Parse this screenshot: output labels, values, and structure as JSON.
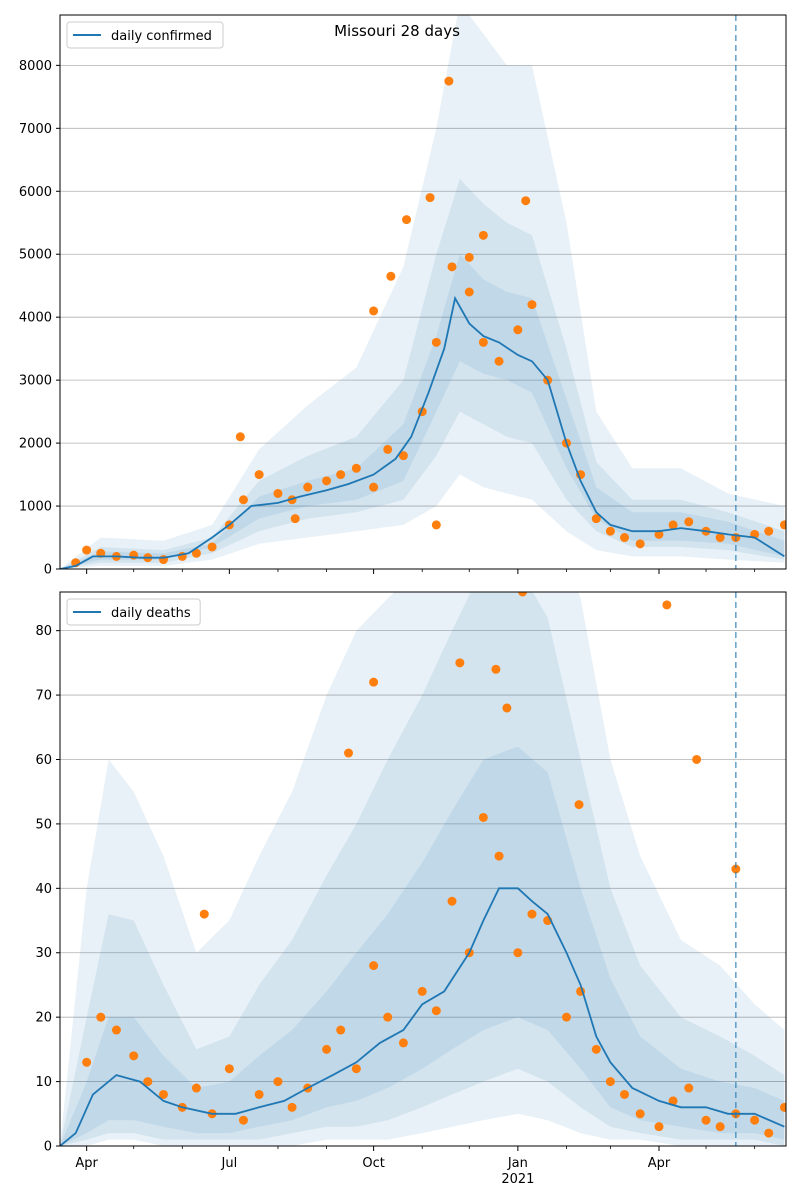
{
  "figure": {
    "title": "Missouri 28 days"
  },
  "chart_data": [
    {
      "type": "line",
      "name_in_legend": "daily confirmed",
      "series": [
        {
          "name": "daily confirmed",
          "style": "line",
          "x": [
            "2020-03-15",
            "2020-03-25",
            "2020-04-05",
            "2020-04-20",
            "2020-05-05",
            "2020-05-20",
            "2020-06-05",
            "2020-06-20",
            "2020-07-01",
            "2020-07-15",
            "2020-08-01",
            "2020-08-15",
            "2020-09-01",
            "2020-09-15",
            "2020-10-01",
            "2020-10-15",
            "2020-10-25",
            "2020-11-05",
            "2020-11-15",
            "2020-11-22",
            "2020-12-01",
            "2020-12-10",
            "2020-12-20",
            "2021-01-01",
            "2021-01-10",
            "2021-01-20",
            "2021-02-01",
            "2021-02-10",
            "2021-02-20",
            "2021-03-01",
            "2021-03-15",
            "2021-04-01",
            "2021-04-15",
            "2021-05-01",
            "2021-05-15",
            "2021-06-01",
            "2021-06-20"
          ],
          "values": [
            0,
            50,
            200,
            200,
            180,
            180,
            250,
            500,
            700,
            1000,
            1050,
            1150,
            1250,
            1350,
            1500,
            1750,
            2100,
            2800,
            3500,
            4300,
            3900,
            3700,
            3600,
            3400,
            3300,
            3000,
            2000,
            1400,
            900,
            700,
            600,
            600,
            650,
            600,
            550,
            500,
            200
          ]
        }
      ],
      "observed": {
        "x": [
          "2020-03-25",
          "2020-04-01",
          "2020-04-10",
          "2020-04-20",
          "2020-05-01",
          "2020-05-10",
          "2020-05-20",
          "2020-06-01",
          "2020-06-10",
          "2020-06-20",
          "2020-07-01",
          "2020-07-10",
          "2020-07-20",
          "2020-08-01",
          "2020-08-10",
          "2020-08-20",
          "2020-09-01",
          "2020-09-10",
          "2020-09-20",
          "2020-10-01",
          "2020-10-10",
          "2020-10-20",
          "2020-11-01",
          "2020-11-10",
          "2020-11-20",
          "2020-12-01",
          "2020-12-10",
          "2020-12-20",
          "2021-01-01",
          "2021-01-10",
          "2021-01-20",
          "2021-02-01",
          "2021-02-10",
          "2021-02-20",
          "2021-03-01",
          "2021-03-10",
          "2021-03-20",
          "2021-04-01",
          "2021-04-10",
          "2021-04-20",
          "2021-05-01",
          "2021-05-10",
          "2021-05-20",
          "2021-06-01",
          "2021-06-10",
          "2021-06-20",
          "2020-10-01",
          "2020-11-06",
          "2020-11-18",
          "2020-10-12",
          "2020-12-10",
          "2021-01-06",
          "2020-12-01",
          "2020-10-22",
          "2020-07-08",
          "2020-08-12",
          "2020-11-10"
        ],
        "values": [
          100,
          300,
          250,
          200,
          220,
          180,
          150,
          200,
          250,
          350,
          700,
          1100,
          1500,
          1200,
          1100,
          1300,
          1400,
          1500,
          1600,
          1300,
          1900,
          1800,
          2500,
          3600,
          4800,
          4400,
          3600,
          3300,
          3800,
          4200,
          3000,
          2000,
          1500,
          800,
          600,
          500,
          400,
          550,
          700,
          750,
          600,
          500,
          500,
          550,
          600,
          700,
          4100,
          5900,
          7750,
          4650,
          5300,
          5850,
          4950,
          5550,
          2100,
          800,
          700
        ]
      },
      "bands": [
        {
          "name": "",
          "x": [
            "2020-03-15",
            "2020-04-10",
            "2020-05-20",
            "2020-06-20",
            "2020-07-20",
            "2020-08-20",
            "2020-09-20",
            "2020-10-20",
            "2020-11-10",
            "2020-11-25",
            "2020-12-10",
            "2020-12-25",
            "2021-01-10",
            "2021-02-01",
            "2021-02-20",
            "2021-03-15",
            "2021-04-15",
            "2021-05-15",
            "2021-06-20"
          ],
          "lower": [
            0,
            50,
            50,
            150,
            400,
            500,
            600,
            700,
            1000,
            1500,
            1300,
            1200,
            1100,
            600,
            300,
            200,
            200,
            150,
            100
          ],
          "upper": [
            0,
            500,
            450,
            700,
            1900,
            2600,
            3200,
            4800,
            7000,
            9000,
            8500,
            8000,
            8000,
            5500,
            2500,
            1600,
            1600,
            1200,
            1000
          ]
        },
        {
          "name": "",
          "x": [
            "2020-03-15",
            "2020-04-10",
            "2020-05-20",
            "2020-06-20",
            "2020-07-20",
            "2020-08-20",
            "2020-09-20",
            "2020-10-20",
            "2020-11-10",
            "2020-11-25",
            "2020-12-10",
            "2020-12-25",
            "2021-01-10",
            "2021-02-01",
            "2021-02-20",
            "2021-03-15",
            "2021-04-15",
            "2021-05-15",
            "2021-06-20"
          ],
          "lower": [
            0,
            100,
            100,
            250,
            600,
            800,
            900,
            1100,
            1800,
            2500,
            2300,
            2100,
            2000,
            1100,
            600,
            350,
            350,
            300,
            150
          ],
          "upper": [
            0,
            350,
            300,
            500,
            1400,
            1800,
            2100,
            3000,
            5000,
            6200,
            5800,
            5500,
            5300,
            3500,
            1700,
            1100,
            1100,
            900,
            600
          ]
        },
        {
          "name": "",
          "x": [
            "2020-03-15",
            "2020-04-10",
            "2020-05-20",
            "2020-06-20",
            "2020-07-20",
            "2020-08-20",
            "2020-09-20",
            "2020-10-20",
            "2020-11-10",
            "2020-11-25",
            "2020-12-10",
            "2020-12-25",
            "2021-01-10",
            "2021-02-01",
            "2021-02-20",
            "2021-03-15",
            "2021-04-15",
            "2021-05-15",
            "2021-06-20"
          ],
          "lower": [
            0,
            150,
            150,
            350,
            800,
            1000,
            1100,
            1400,
            2500,
            3300,
            3100,
            3000,
            2800,
            1600,
            800,
            450,
            450,
            400,
            200
          ],
          "upper": [
            0,
            280,
            250,
            400,
            1150,
            1400,
            1600,
            2300,
            3700,
            5000,
            4600,
            4400,
            4300,
            2700,
            1300,
            900,
            900,
            750,
            450
          ]
        }
      ],
      "vline_x": "2021-05-20",
      "x_range": [
        "2020-03-15",
        "2021-06-21"
      ],
      "ylim": [
        0,
        8800
      ],
      "yticks": [
        0,
        1000,
        2000,
        3000,
        4000,
        5000,
        6000,
        7000,
        8000
      ],
      "xlabel": "",
      "ylabel": "",
      "grid": "y",
      "legend": "top-left",
      "colors": {
        "line": "#1f77b4",
        "observed": "#ff7f0e",
        "band": "#1f77b4",
        "vline": "#1f77b4"
      }
    },
    {
      "type": "line",
      "name_in_legend": "daily deaths",
      "series": [
        {
          "name": "daily deaths",
          "style": "line",
          "x": [
            "2020-03-15",
            "2020-03-25",
            "2020-04-05",
            "2020-04-20",
            "2020-05-05",
            "2020-05-20",
            "2020-06-01",
            "2020-06-20",
            "2020-07-05",
            "2020-07-20",
            "2020-08-05",
            "2020-08-20",
            "2020-09-05",
            "2020-09-20",
            "2020-10-05",
            "2020-10-20",
            "2020-11-01",
            "2020-11-15",
            "2020-12-01",
            "2020-12-10",
            "2020-12-20",
            "2021-01-01",
            "2021-01-10",
            "2021-01-20",
            "2021-02-01",
            "2021-02-10",
            "2021-02-20",
            "2021-03-01",
            "2021-03-15",
            "2021-04-01",
            "2021-04-15",
            "2021-05-01",
            "2021-05-15",
            "2021-06-01",
            "2021-06-20"
          ],
          "values": [
            0,
            2,
            8,
            11,
            10,
            7,
            6,
            5,
            5,
            6,
            7,
            9,
            11,
            13,
            16,
            18,
            22,
            24,
            30,
            35,
            40,
            40,
            38,
            36,
            30,
            25,
            17,
            13,
            9,
            7,
            6,
            6,
            5,
            5,
            3
          ]
        }
      ],
      "observed": {
        "x": [
          "2020-04-01",
          "2020-04-10",
          "2020-04-20",
          "2020-05-01",
          "2020-05-10",
          "2020-05-20",
          "2020-06-01",
          "2020-06-10",
          "2020-06-20",
          "2020-07-01",
          "2020-07-10",
          "2020-07-20",
          "2020-08-01",
          "2020-08-10",
          "2020-08-20",
          "2020-09-01",
          "2020-09-10",
          "2020-09-20",
          "2020-10-01",
          "2020-10-10",
          "2020-10-20",
          "2020-11-01",
          "2020-11-10",
          "2020-11-20",
          "2020-12-01",
          "2020-12-10",
          "2020-12-20",
          "2021-01-01",
          "2021-01-10",
          "2021-01-20",
          "2021-02-01",
          "2021-02-10",
          "2021-02-20",
          "2021-03-01",
          "2021-03-10",
          "2021-03-20",
          "2021-04-01",
          "2021-04-10",
          "2021-04-20",
          "2021-05-01",
          "2021-05-10",
          "2021-05-20",
          "2021-06-01",
          "2021-06-10",
          "2021-06-20",
          "2020-09-15",
          "2020-10-01",
          "2020-11-25",
          "2020-12-18",
          "2021-01-04",
          "2021-04-06",
          "2021-04-25",
          "2021-05-20",
          "2021-02-09",
          "2020-06-15",
          "2020-12-25"
        ],
        "values": [
          13,
          20,
          18,
          14,
          10,
          8,
          6,
          9,
          5,
          12,
          4,
          8,
          10,
          6,
          9,
          15,
          18,
          12,
          28,
          20,
          16,
          24,
          21,
          38,
          30,
          51,
          45,
          30,
          36,
          35,
          20,
          24,
          15,
          10,
          8,
          5,
          3,
          7,
          9,
          4,
          3,
          5,
          4,
          2,
          6,
          61,
          72,
          75,
          74,
          86,
          84,
          60,
          43,
          53,
          36,
          68
        ]
      },
      "bands": [
        {
          "name": "",
          "x": [
            "2020-03-15",
            "2020-04-01",
            "2020-04-15",
            "2020-05-01",
            "2020-05-20",
            "2020-06-10",
            "2020-07-01",
            "2020-07-20",
            "2020-08-10",
            "2020-09-01",
            "2020-09-20",
            "2020-10-10",
            "2020-11-01",
            "2020-11-20",
            "2020-12-10",
            "2021-01-01",
            "2021-01-20",
            "2021-02-10",
            "2021-03-01",
            "2021-03-20",
            "2021-04-15",
            "2021-05-10",
            "2021-06-01",
            "2021-06-20"
          ],
          "lower": [
            0,
            0,
            1,
            1,
            0,
            0,
            0,
            0,
            0,
            1,
            1,
            1,
            2,
            3,
            4,
            5,
            4,
            2,
            1,
            1,
            0,
            0,
            0,
            0
          ],
          "upper": [
            0,
            40,
            60,
            55,
            45,
            30,
            35,
            45,
            55,
            70,
            80,
            85,
            90,
            100,
            110,
            110,
            100,
            85,
            60,
            45,
            32,
            28,
            22,
            18
          ]
        },
        {
          "name": "",
          "x": [
            "2020-03-15",
            "2020-04-01",
            "2020-04-15",
            "2020-05-01",
            "2020-05-20",
            "2020-06-10",
            "2020-07-01",
            "2020-07-20",
            "2020-08-10",
            "2020-09-01",
            "2020-09-20",
            "2020-10-10",
            "2020-11-01",
            "2020-11-20",
            "2020-12-10",
            "2021-01-01",
            "2021-01-20",
            "2021-02-10",
            "2021-03-01",
            "2021-03-20",
            "2021-04-15",
            "2021-05-10",
            "2021-06-01",
            "2021-06-20"
          ],
          "lower": [
            0,
            1,
            2,
            2,
            1,
            1,
            1,
            1,
            2,
            3,
            3,
            4,
            6,
            8,
            10,
            12,
            10,
            6,
            3,
            2,
            1,
            1,
            1,
            0
          ],
          "upper": [
            0,
            20,
            36,
            35,
            25,
            15,
            17,
            25,
            32,
            42,
            50,
            60,
            70,
            80,
            90,
            90,
            82,
            60,
            40,
            28,
            20,
            17,
            14,
            11
          ]
        },
        {
          "name": "",
          "x": [
            "2020-03-15",
            "2020-04-01",
            "2020-04-15",
            "2020-05-01",
            "2020-05-20",
            "2020-06-10",
            "2020-07-01",
            "2020-07-20",
            "2020-08-10",
            "2020-09-01",
            "2020-09-20",
            "2020-10-10",
            "2020-11-01",
            "2020-11-20",
            "2020-12-10",
            "2021-01-01",
            "2021-01-20",
            "2021-02-10",
            "2021-03-01",
            "2021-03-20",
            "2021-04-15",
            "2021-05-10",
            "2021-06-01",
            "2021-06-20"
          ],
          "lower": [
            0,
            2,
            4,
            4,
            3,
            2,
            2,
            3,
            4,
            6,
            7,
            9,
            12,
            15,
            18,
            20,
            18,
            12,
            6,
            4,
            3,
            2,
            2,
            1
          ],
          "upper": [
            0,
            10,
            20,
            20,
            14,
            9,
            10,
            14,
            18,
            24,
            30,
            36,
            44,
            52,
            60,
            62,
            58,
            40,
            26,
            17,
            12,
            10,
            9,
            7
          ]
        }
      ],
      "vline_x": "2021-05-20",
      "x_range": [
        "2020-03-15",
        "2021-06-21"
      ],
      "ylim": [
        0,
        86
      ],
      "yticks": [
        0,
        10,
        20,
        30,
        40,
        50,
        60,
        70,
        80
      ],
      "xticks": [
        {
          "date": "2020-04-01",
          "label": "Apr"
        },
        {
          "date": "2020-07-01",
          "label": "Jul"
        },
        {
          "date": "2020-10-01",
          "label": "Oct"
        },
        {
          "date": "2021-01-01",
          "label": "Jan"
        },
        {
          "date": "2021-04-01",
          "label": "Apr"
        }
      ],
      "year_label": "2021",
      "xlabel": "",
      "ylabel": "",
      "grid": "y",
      "legend": "top-left",
      "colors": {
        "line": "#1f77b4",
        "observed": "#ff7f0e",
        "band": "#1f77b4",
        "vline": "#1f77b4"
      }
    }
  ]
}
